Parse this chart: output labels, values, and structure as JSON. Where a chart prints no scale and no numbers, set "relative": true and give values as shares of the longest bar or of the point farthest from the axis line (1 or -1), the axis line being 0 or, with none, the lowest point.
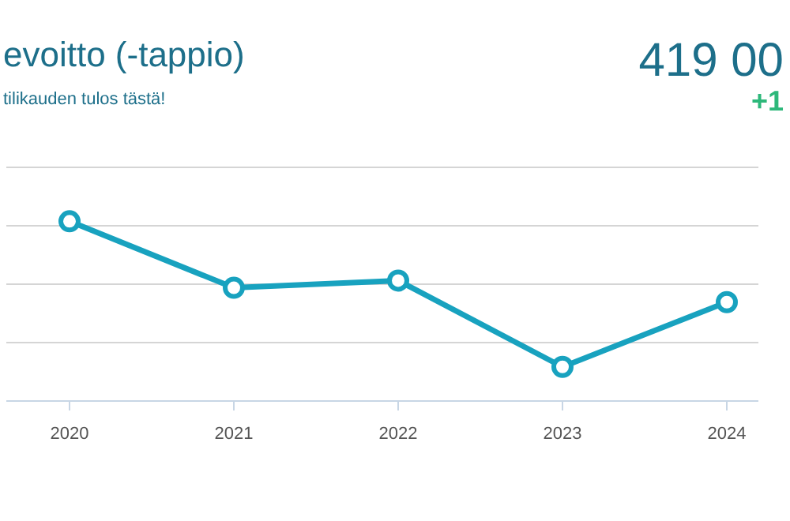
{
  "chart_data": {
    "type": "line",
    "title": "evoitto (-tappio)",
    "subtitle": "tilikauden tulos tästä!",
    "annotations": [
      "419 00",
      "+1"
    ],
    "categories": [
      "2020",
      "2021",
      "2022",
      "2023",
      "2024"
    ],
    "relative": true,
    "series": [
      {
        "color": "#18a2bf",
        "values": [
          1,
          0.63,
          0.67,
          0.19,
          0.55
        ]
      }
    ],
    "grid": "y",
    "marker": "circle",
    "line_style": "solid"
  }
}
